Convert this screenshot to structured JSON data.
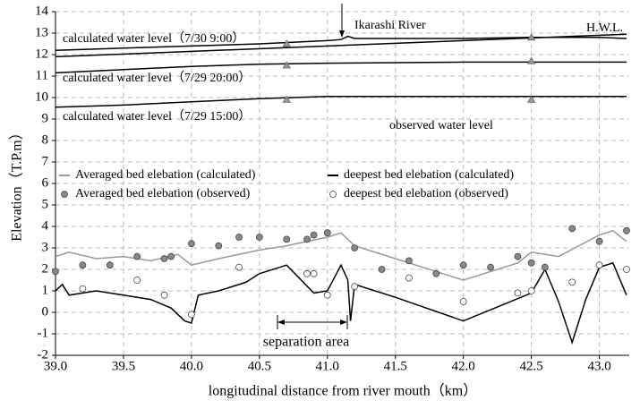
{
  "chart_data": {
    "type": "line",
    "x_label": "longitudinal distance from river mouth（km）",
    "y_label": "Elevation（T.P.m）",
    "xlim": [
      39.0,
      43.22
    ],
    "ylim": [
      -2,
      14
    ],
    "xticks": [
      {
        "value": 39,
        "label": "39.0"
      },
      {
        "value": 39.5,
        "label": "39.5"
      },
      {
        "value": 40,
        "label": "40.0"
      },
      {
        "value": 40.5,
        "label": "40.5"
      },
      {
        "value": 41,
        "label": "41.0"
      },
      {
        "value": 41.5,
        "label": "41.5"
      },
      {
        "value": 42,
        "label": "42.0"
      },
      {
        "value": 42.5,
        "label": "42.5"
      },
      {
        "value": 43,
        "label": "43.0"
      }
    ],
    "yticks": [
      -2,
      -1,
      0,
      1,
      2,
      3,
      4,
      5,
      6,
      7,
      8,
      9,
      10,
      11,
      12,
      13,
      14
    ],
    "grid": true,
    "series": [
      {
        "name": "H.W.L.",
        "kind": "line",
        "legend": false,
        "color": "#000000",
        "x": [
          39.0,
          43.2
        ],
        "values": [
          11.9,
          12.95
        ]
      },
      {
        "name": "calculated water level（7/30 9:00）",
        "kind": "line",
        "legend": false,
        "color": "#000000",
        "x": [
          39.0,
          39.5,
          40.0,
          40.5,
          41.0,
          41.1,
          41.15,
          41.2,
          41.5,
          42.0,
          42.5,
          43.0,
          43.2
        ],
        "values": [
          12.2,
          12.3,
          12.4,
          12.5,
          12.65,
          12.7,
          12.85,
          12.75,
          12.75,
          12.75,
          12.8,
          12.8,
          12.75
        ]
      },
      {
        "name": "calculated water level（7/29 20:00）",
        "kind": "line",
        "legend": false,
        "color": "#000000",
        "x": [
          39.0,
          39.5,
          40.0,
          40.5,
          41.0,
          42.0,
          43.2
        ],
        "values": [
          11.15,
          11.3,
          11.45,
          11.55,
          11.6,
          11.65,
          11.65
        ]
      },
      {
        "name": "calculated water level（7/29 15:00）",
        "kind": "line",
        "legend": false,
        "color": "#000000",
        "x": [
          39.0,
          39.5,
          40.0,
          40.5,
          41.0,
          41.5,
          42.0,
          43.2
        ],
        "values": [
          9.55,
          9.65,
          9.8,
          9.95,
          10.05,
          10.05,
          10.05,
          10.05
        ]
      },
      {
        "name": "observed  water level",
        "kind": "marker",
        "marker": "triangle",
        "legend": false,
        "color": "#999999",
        "x": [
          40.7,
          40.7,
          40.7,
          42.5,
          42.5,
          42.5
        ],
        "values": [
          12.5,
          11.5,
          9.9,
          12.8,
          11.7,
          9.9
        ]
      },
      {
        "name": "Averaged bed elebation (calculated)",
        "kind": "line",
        "legend": true,
        "color": "#999999",
        "x": [
          39.0,
          39.1,
          39.3,
          39.5,
          39.7,
          39.9,
          40.0,
          40.2,
          40.5,
          40.7,
          41.0,
          41.1,
          41.2,
          41.5,
          42.0,
          42.4,
          42.5,
          42.7,
          43.0,
          43.1,
          43.2
        ],
        "values": [
          2.6,
          2.8,
          2.5,
          2.6,
          2.4,
          2.7,
          2.2,
          2.5,
          2.9,
          3.1,
          3.5,
          3.7,
          3.1,
          2.5,
          1.5,
          2.3,
          2.8,
          2.6,
          3.6,
          3.8,
          3.3
        ]
      },
      {
        "name": "deepest bed elebation (calculated)",
        "kind": "line",
        "legend": true,
        "color": "#000000",
        "x": [
          39.0,
          39.05,
          39.1,
          39.3,
          39.5,
          39.7,
          39.85,
          39.95,
          40.0,
          40.05,
          40.2,
          40.4,
          40.5,
          40.7,
          40.9,
          41.0,
          41.1,
          41.15,
          41.17,
          41.2,
          41.5,
          42.0,
          42.5,
          42.6,
          42.7,
          42.8,
          42.9,
          43.0,
          43.1,
          43.2
        ],
        "values": [
          1.0,
          1.3,
          0.8,
          1.0,
          0.8,
          0.6,
          0.2,
          -0.4,
          -0.5,
          0.8,
          1.0,
          1.4,
          1.8,
          2.2,
          0.9,
          1.0,
          2.2,
          1.5,
          -0.4,
          1.3,
          0.7,
          -0.4,
          0.9,
          2.0,
          0.5,
          -1.4,
          0.6,
          2.1,
          2.3,
          0.8
        ]
      },
      {
        "name": "Averaged bed elebation (observed)",
        "kind": "marker",
        "marker": "circle",
        "legend": true,
        "color": "#888888",
        "x": [
          39.0,
          39.2,
          39.4,
          39.6,
          39.8,
          39.85,
          40.0,
          40.2,
          40.35,
          40.5,
          40.7,
          40.85,
          40.9,
          41.0,
          41.2,
          41.4,
          41.6,
          41.8,
          42.0,
          42.2,
          42.4,
          42.5,
          42.6,
          42.8,
          43.0,
          43.2
        ],
        "values": [
          1.9,
          2.2,
          2.2,
          2.6,
          2.5,
          2.6,
          3.2,
          3.1,
          3.5,
          3.5,
          3.4,
          3.4,
          3.6,
          3.7,
          3.0,
          2.0,
          2.4,
          1.8,
          2.2,
          2.1,
          2.6,
          2.3,
          2.1,
          3.9,
          3.3,
          3.8
        ]
      },
      {
        "name": "deepest bed elebation (observed)",
        "kind": "marker",
        "marker": "circle",
        "legend": true,
        "color": "#ffffff",
        "x": [
          39.2,
          39.6,
          39.8,
          40.0,
          40.35,
          40.85,
          40.9,
          41.0,
          41.2,
          41.6,
          42.0,
          42.4,
          42.5,
          42.8,
          43.0,
          43.2
        ],
        "values": [
          1.1,
          1.5,
          0.8,
          -0.1,
          2.1,
          1.8,
          1.8,
          0.8,
          1.2,
          1.6,
          0.5,
          0.9,
          1.0,
          1.4,
          2.2,
          2.0
        ]
      }
    ],
    "annotations": [
      "Ikarashi River",
      "separation  area"
    ]
  }
}
